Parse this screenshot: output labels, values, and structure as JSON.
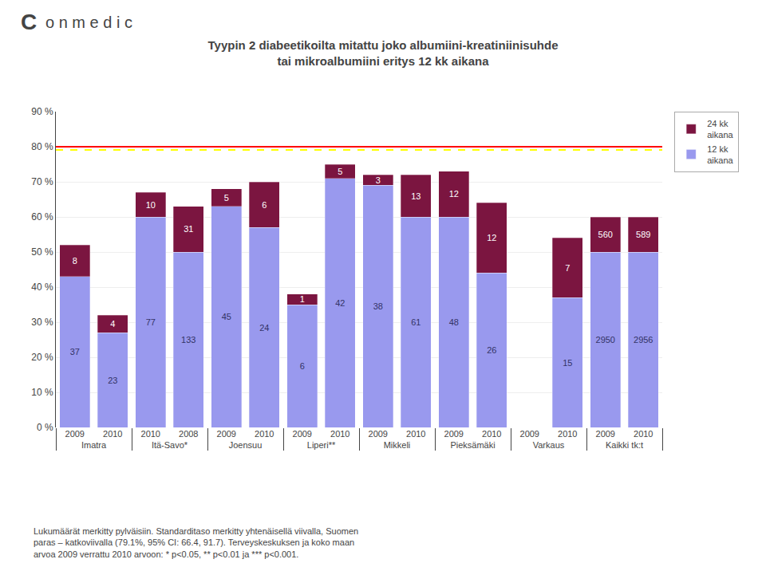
{
  "chart_data": {
    "type": "bar",
    "stacked": true,
    "title": "Tyypin 2 diabeetikoilta mitattu joko albumiini-kreatiniinisuhde\ntai mikroalbumiini eritys 12 kk aikana",
    "categories": [
      [
        "Imatra",
        "2009"
      ],
      [
        "Imatra",
        "2010"
      ],
      [
        "Itä-Savo*",
        "2008"
      ],
      [
        "Itä-Savo*",
        "2010"
      ],
      [
        "Joensuu",
        "2009"
      ],
      [
        "Joensuu",
        "2010"
      ],
      [
        "Liperi**",
        "2009"
      ],
      [
        "Liperi**",
        "2010"
      ],
      [
        "Mikkeli",
        "2009"
      ],
      [
        "Mikkeli",
        "2010"
      ],
      [
        "Pieksämäki",
        "2009"
      ],
      [
        "Pieksämäki",
        "2010"
      ],
      [
        "Varkaus",
        "2009"
      ],
      [
        "Varkaus",
        "2010"
      ],
      [
        "Kaikki tk:t",
        "2009"
      ],
      [
        "Kaikki tk:t",
        "2010"
      ]
    ],
    "series": [
      {
        "name": "12 kk\naikana",
        "color": "#9999EE",
        "values": [
          43,
          27,
          50,
          60,
          63,
          57,
          35,
          71,
          69,
          60,
          60,
          44,
          0,
          37,
          50,
          50
        ],
        "counts": [
          37,
          23,
          133,
          77,
          45,
          24,
          6,
          42,
          38,
          61,
          48,
          26,
          null,
          15,
          2950,
          2956
        ]
      },
      {
        "name": "24 kk\naikana",
        "color": "#7B1540",
        "values": [
          9,
          5,
          13,
          7,
          5,
          13,
          3,
          4,
          3,
          12,
          13,
          20,
          0,
          17,
          10,
          10
        ],
        "counts": [
          8,
          4,
          31,
          10,
          5,
          6,
          1,
          5,
          3,
          13,
          12,
          12,
          null,
          7,
          560,
          589
        ]
      }
    ],
    "hlines": [
      {
        "y": 80,
        "color": "red",
        "line_style": "solid"
      },
      {
        "y": 79.1,
        "color": "yellow",
        "line_style": "dashed"
      }
    ],
    "ylim": [
      0,
      90
    ],
    "yticks": [
      {
        "value": 0,
        "label": "0 %"
      },
      {
        "value": 10,
        "label": "10 %"
      },
      {
        "value": 20,
        "label": "20 %"
      },
      {
        "value": 30,
        "label": "30 %"
      },
      {
        "value": 40,
        "label": "40 %"
      },
      {
        "value": 50,
        "label": "50 %"
      },
      {
        "value": 60,
        "label": "60 %"
      },
      {
        "value": 70,
        "label": "70 %"
      },
      {
        "value": 80,
        "label": "80 %"
      },
      {
        "value": 90,
        "label": "90 %"
      }
    ],
    "grid": true,
    "legend": "right",
    "annotations": [
      "C",
      "o n m e d i c",
      "Lukumäärät merkitty pylväisiin. Standarditaso merkitty yhtenäisellä viivalla, Suomen\nparas – katkoviivalla (79.1%, 95% CI: 66.4, 91.7). Terveyskeskuksen ja koko maan\narvoa 2009 verrattu 2010 arvoon: * p<0.05, ** p<0.01 ja *** p<0.001."
    ]
  }
}
